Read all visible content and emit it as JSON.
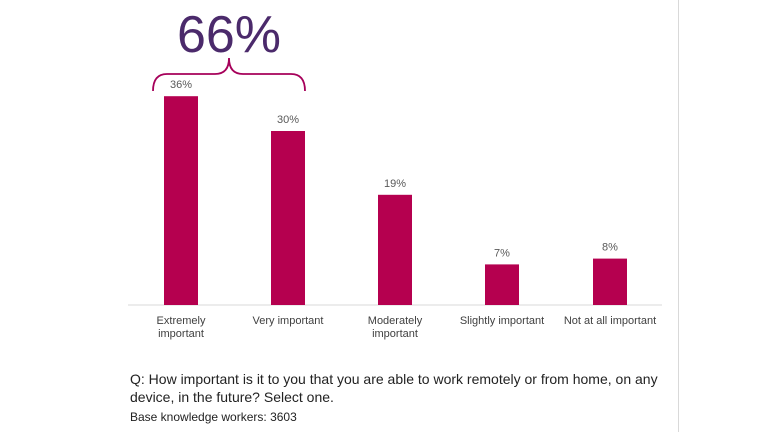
{
  "chart_data": {
    "type": "bar",
    "categories": [
      [
        "Extremely",
        "important"
      ],
      [
        "Very important"
      ],
      [
        "Moderately",
        "important"
      ],
      [
        "Slightly important"
      ],
      [
        "Not at all important"
      ]
    ],
    "values": [
      36,
      30,
      19,
      7,
      8
    ],
    "data_labels": [
      "36%",
      "30%",
      "19%",
      "7%",
      "8%"
    ],
    "ylim": [
      0,
      40
    ],
    "grid": false,
    "bar_color": "#b5004f",
    "callout": {
      "text": "66%",
      "spans_categories": [
        0,
        1
      ],
      "text_color": "#4b2a6b",
      "bracket_color": "#a6005a"
    }
  },
  "question": "Q: How important is it to you that you are able to work remotely or from home, on any device, in the future? Select one.",
  "base_note": "Base knowledge workers: 3603"
}
